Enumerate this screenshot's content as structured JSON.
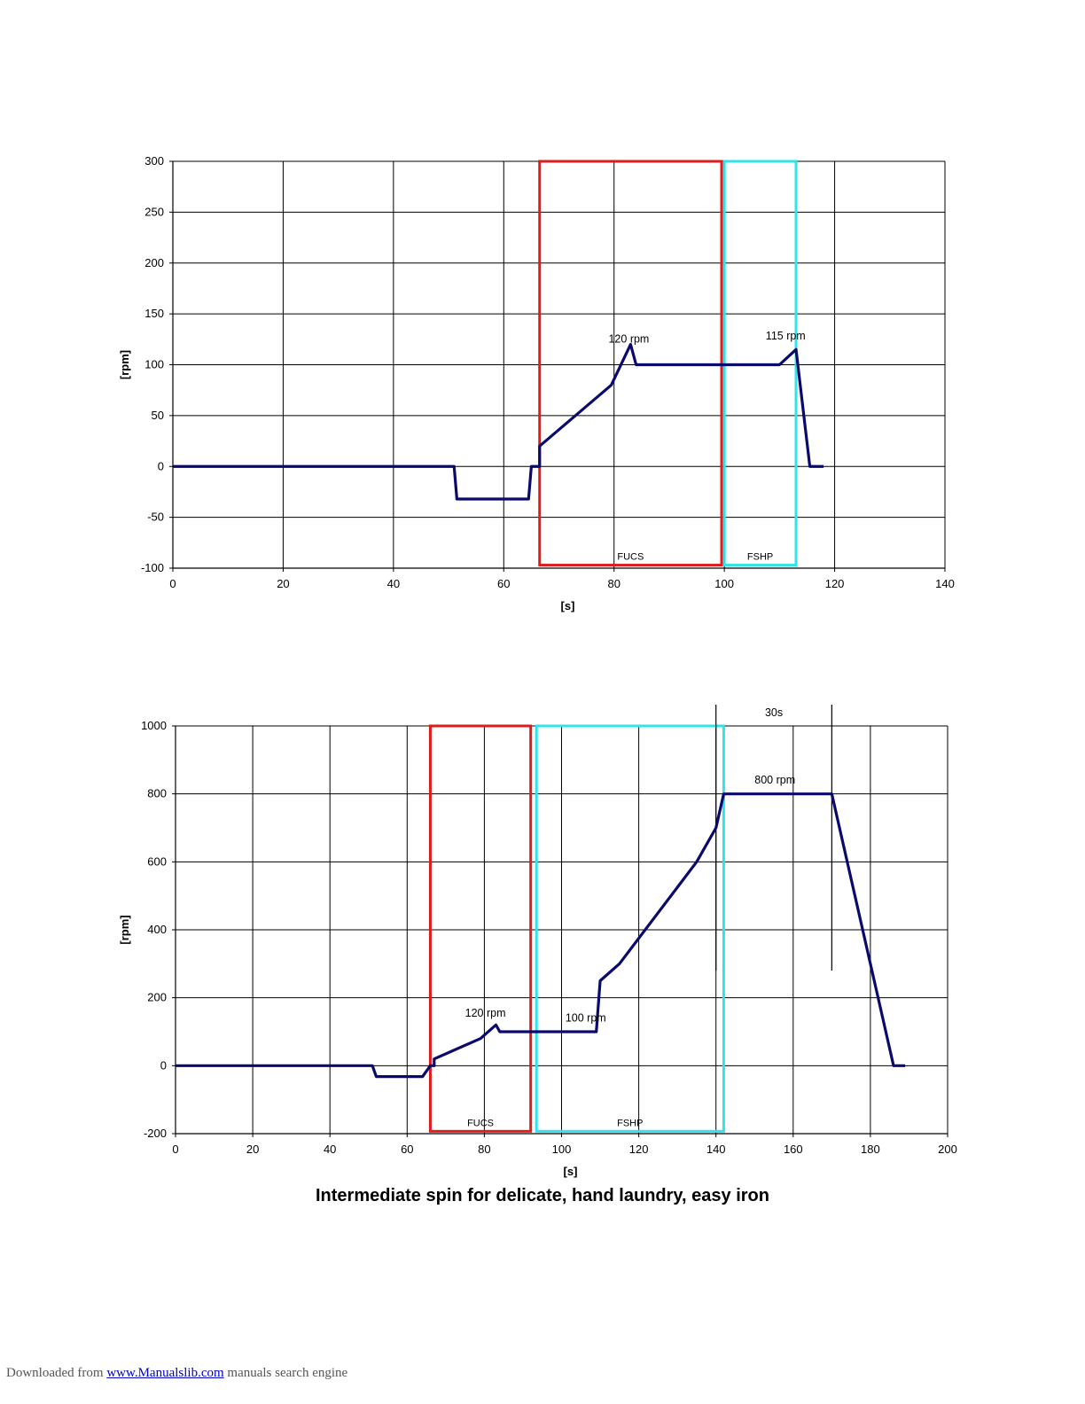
{
  "caption": "Intermediate spin for delicate, hand laundry,  easy iron",
  "footer": {
    "prefix": "Downloaded from ",
    "link": "www.Manualslib.com",
    "suffix": " manuals search engine"
  },
  "colors": {
    "series": "#0a0a6e",
    "fucs_box": "#e01b1b",
    "fshp_box": "#2fe3e8",
    "grid": "#000000"
  },
  "chart_data": [
    {
      "type": "line",
      "xlabel": "[s]",
      "ylabel": "[rpm]",
      "xlim": [
        0,
        140
      ],
      "ylim": [
        -100,
        300
      ],
      "xticks": [
        0,
        20,
        40,
        60,
        80,
        100,
        120,
        140
      ],
      "yticks": [
        -100,
        -50,
        0,
        50,
        100,
        150,
        200,
        250,
        300
      ],
      "grid": true,
      "series": [
        {
          "x": [
            0,
            51,
            51.5,
            64.5,
            65,
            66.5,
            66.5,
            79.5,
            83,
            84,
            110,
            113,
            115.5,
            118
          ],
          "y": [
            0,
            0,
            -32,
            -32,
            0,
            0,
            20,
            80,
            120,
            100,
            100,
            115,
            0,
            0
          ]
        }
      ],
      "regions": [
        {
          "label": "FUCS",
          "x": [
            66.5,
            99.5
          ],
          "y": [
            -97,
            300
          ],
          "color": "#e01b1b"
        },
        {
          "label": "FSHP",
          "x": [
            100,
            113
          ],
          "y": [
            -97,
            300
          ],
          "color": "#2fe3e8"
        }
      ],
      "annotations": [
        {
          "text": "120 rpm",
          "x": 79,
          "y": 122
        },
        {
          "text": "115 rpm",
          "x": 107.5,
          "y": 125
        }
      ]
    },
    {
      "type": "line",
      "xlabel": "[s]",
      "ylabel": "[rpm]",
      "xlim": [
        0,
        200
      ],
      "ylim": [
        -200,
        1000
      ],
      "xticks": [
        0,
        20,
        40,
        60,
        80,
        100,
        120,
        140,
        160,
        180,
        200
      ],
      "yticks": [
        -200,
        0,
        200,
        400,
        600,
        800,
        1000
      ],
      "grid": true,
      "series": [
        {
          "x": [
            0,
            51,
            52,
            64,
            66,
            67,
            67,
            79,
            83,
            84,
            109,
            110,
            115,
            135,
            140,
            142,
            170,
            186,
            189
          ],
          "y": [
            0,
            0,
            -32,
            -32,
            0,
            0,
            20,
            80,
            120,
            100,
            100,
            250,
            300,
            600,
            700,
            800,
            800,
            0,
            0
          ]
        }
      ],
      "regions": [
        {
          "label": "FUCS",
          "x": [
            66,
            92
          ],
          "y": [
            -193,
            1000
          ],
          "color": "#e01b1b"
        },
        {
          "label": "FSHP",
          "x": [
            93.5,
            142
          ],
          "y": [
            -193,
            1000
          ],
          "color": "#2fe3e8"
        }
      ],
      "markers": [
        {
          "x": 140,
          "label": "30s"
        },
        {
          "x": 170
        }
      ],
      "annotations": [
        {
          "text": "120 rpm",
          "x": 75,
          "y": 145
        },
        {
          "text": "100 rpm",
          "x": 101,
          "y": 130
        },
        {
          "text": "800 rpm",
          "x": 150,
          "y": 830
        }
      ]
    }
  ]
}
